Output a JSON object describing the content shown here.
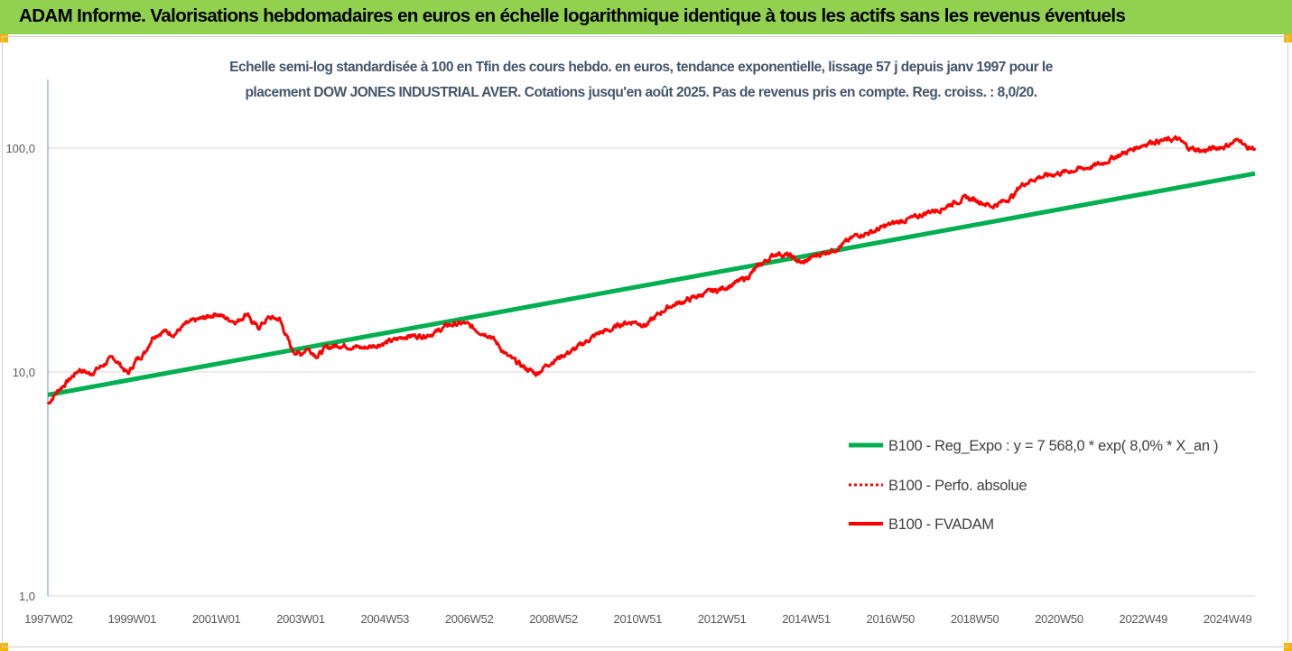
{
  "header": {
    "title": "ADAM Informe. Valorisations hebdomadaires en euros en échelle logarithmique identique à tous les actifs sans les revenus éventuels"
  },
  "chart_data": {
    "type": "line",
    "title_line1": "Echelle semi-log standardisée à 100 en Tfin des cours hebdo. en euros, tendance exponentielle, lissage 57 j depuis janv 1997 pour le",
    "title_line2": "placement DOW JONES INDUSTRIAL AVER. Cotations jusqu'en août 2025.  Pas de revenus pris en compte. Reg. croiss. : 8,0/20.",
    "y_scale": "log",
    "ylim": [
      1,
      200
    ],
    "xlim": [
      1997.0,
      2025.65
    ],
    "y_ticks": [
      {
        "value": 1,
        "label": "1,0"
      },
      {
        "value": 10,
        "label": "10,0"
      },
      {
        "value": 100,
        "label": "100,0"
      }
    ],
    "x_ticks": [
      {
        "value": 1997.02,
        "label": "1997W02"
      },
      {
        "value": 1999.0,
        "label": "1999W01"
      },
      {
        "value": 2001.0,
        "label": "2001W01"
      },
      {
        "value": 2003.0,
        "label": "2003W01"
      },
      {
        "value": 2005.0,
        "label": "2004W53"
      },
      {
        "value": 2007.0,
        "label": "2006W52"
      },
      {
        "value": 2009.0,
        "label": "2008W52"
      },
      {
        "value": 2011.0,
        "label": "2010W51"
      },
      {
        "value": 2013.0,
        "label": "2012W51"
      },
      {
        "value": 2015.0,
        "label": "2014W51"
      },
      {
        "value": 2017.0,
        "label": "2016W50"
      },
      {
        "value": 2019.0,
        "label": "2018W50"
      },
      {
        "value": 2021.0,
        "label": "2020W50"
      },
      {
        "value": 2023.0,
        "label": "2022W49"
      },
      {
        "value": 2025.0,
        "label": "2024W49"
      }
    ],
    "grid": "horizontal",
    "legend_position": "right",
    "colors": {
      "regression": "#00b050",
      "performance": "#ff0000",
      "fvadam": "#ff0000"
    },
    "series": [
      {
        "name": "B100 - Reg_Expo : y = 7 568,0 * exp( 8,0% *  X_an )",
        "style": "solid-green",
        "x": [
          1997.0,
          2025.65
        ],
        "y": [
          7.9,
          77.0
        ]
      },
      {
        "name": "B100 - Perfo. absolue",
        "style": "dotted-red",
        "x": [],
        "y": []
      },
      {
        "name": "B100 - FVADAM",
        "style": "solid-red",
        "x": [
          1997.0,
          1997.25,
          1997.5,
          1997.75,
          1998.0,
          1998.3,
          1998.55,
          1998.75,
          1998.9,
          1999.1,
          1999.3,
          1999.5,
          1999.75,
          2000.0,
          2000.25,
          2000.5,
          2000.75,
          2001.0,
          2001.25,
          2001.5,
          2001.75,
          2001.85,
          2002.0,
          2002.25,
          2002.5,
          2002.8,
          2003.0,
          2003.15,
          2003.4,
          2003.6,
          2003.9,
          2004.2,
          2004.5,
          2004.8,
          2005.2,
          2005.5,
          2005.9,
          2006.2,
          2006.5,
          2006.9,
          2007.2,
          2007.5,
          2007.9,
          2008.3,
          2008.6,
          2008.85,
          2009.2,
          2009.5,
          2009.8,
          2010.1,
          2010.4,
          2010.6,
          2010.9,
          2011.2,
          2011.6,
          2011.8,
          2012.2,
          2012.6,
          2012.9,
          2013.3,
          2013.6,
          2013.9,
          2014.3,
          2014.6,
          2014.9,
          2015.2,
          2015.5,
          2015.7,
          2016.0,
          2016.2,
          2016.4,
          2016.6,
          2016.9,
          2017.3,
          2017.6,
          2017.9,
          2018.2,
          2018.5,
          2018.8,
          2019.1,
          2019.4,
          2019.7,
          2019.95,
          2020.05,
          2020.2,
          2020.5,
          2020.8,
          2021.1,
          2021.4,
          2021.7,
          2022.0,
          2022.3,
          2022.6,
          2022.9,
          2023.2,
          2023.5,
          2023.8,
          2024.1,
          2024.4,
          2024.7,
          2024.95,
          2025.1,
          2025.3,
          2025.45,
          2025.65
        ],
        "y": [
          7.2,
          8.3,
          9.2,
          10.3,
          9.8,
          10.7,
          11.6,
          10.6,
          9.8,
          11.3,
          12.2,
          14.5,
          15.2,
          14.8,
          16.2,
          17.0,
          17.5,
          18.3,
          17.3,
          16.8,
          18.5,
          16.5,
          15.8,
          17.5,
          17.2,
          12.5,
          12.0,
          12.8,
          11.8,
          12.8,
          13.2,
          13.0,
          12.8,
          13.2,
          13.8,
          14.5,
          14.5,
          15.0,
          16.2,
          16.5,
          15.3,
          14.6,
          11.8,
          10.5,
          9.8,
          10.8,
          11.8,
          12.6,
          13.8,
          15.0,
          15.5,
          16.4,
          16.8,
          16.2,
          18.8,
          19.8,
          21.0,
          22.5,
          23.2,
          24.8,
          26.5,
          30.0,
          34.0,
          33.0,
          30.5,
          33.0,
          34.5,
          35.5,
          38.5,
          41.0,
          41.5,
          42.5,
          45.0,
          47.5,
          49.0,
          52.0,
          53.5,
          57.0,
          60.0,
          58.0,
          55.0,
          58.0,
          62.0,
          67.0,
          70.0,
          74.0,
          76.0,
          78.0,
          80.0,
          82.0,
          85.0,
          91.0,
          96.0,
          102.0,
          107.0,
          108.0,
          110.0,
          100.0,
          97.0,
          100.0,
          102.0,
          105.0,
          110.0,
          100.0,
          100.0
        ]
      }
    ]
  }
}
